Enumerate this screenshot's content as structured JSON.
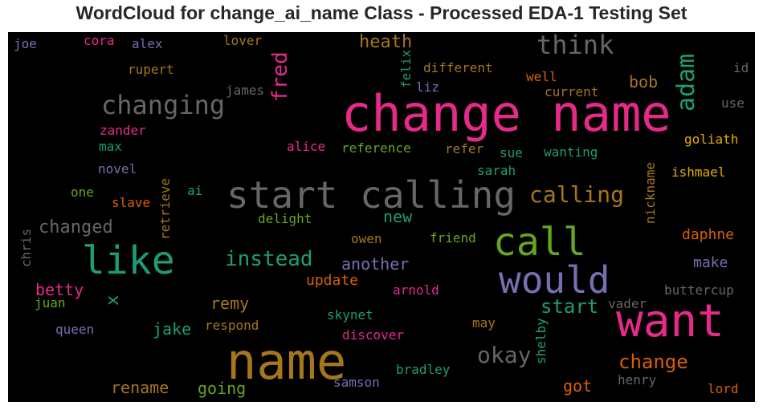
{
  "chart_data": {
    "type": "wordcloud",
    "title": "WordCloud for change_ai_name Class - Processed EDA-1 Testing Set",
    "words": [
      {
        "text": "change name",
        "color": "#e7298a"
      },
      {
        "text": "start calling",
        "color": "#666666"
      },
      {
        "text": "name",
        "color": "#a6761d"
      },
      {
        "text": "like",
        "color": "#1b9e77"
      },
      {
        "text": "call",
        "color": "#66a61e"
      },
      {
        "text": "would",
        "color": "#7570b3"
      },
      {
        "text": "want",
        "color": "#e7298a"
      },
      {
        "text": "think",
        "color": "#666666"
      },
      {
        "text": "changing",
        "color": "#666666"
      },
      {
        "text": "adam",
        "color": "#1b9e77"
      },
      {
        "text": "fred",
        "color": "#e7298a"
      },
      {
        "text": "calling",
        "color": "#a6761d"
      },
      {
        "text": "instead",
        "color": "#1b9e77"
      },
      {
        "text": "okay",
        "color": "#666666"
      },
      {
        "text": "change",
        "color": "#d95f02"
      },
      {
        "text": "start",
        "color": "#1b9e77"
      },
      {
        "text": "changed",
        "color": "#666666"
      },
      {
        "text": "heath",
        "color": "#a6761d"
      },
      {
        "text": "another",
        "color": "#7570b3"
      },
      {
        "text": "bob",
        "color": "#a6761d"
      },
      {
        "text": "new",
        "color": "#1b9e77"
      },
      {
        "text": "daphne",
        "color": "#d95f02"
      },
      {
        "text": "make",
        "color": "#7570b3"
      },
      {
        "text": "update",
        "color": "#d95f02"
      },
      {
        "text": "betty",
        "color": "#e7298a"
      },
      {
        "text": "remy",
        "color": "#a6761d"
      },
      {
        "text": "jake",
        "color": "#1b9e77"
      },
      {
        "text": "rename",
        "color": "#a6761d"
      },
      {
        "text": "going",
        "color": "#66a61e"
      },
      {
        "text": "got",
        "color": "#d95f02"
      },
      {
        "text": "x",
        "color": "#1b9e77"
      },
      {
        "text": "joe",
        "color": "#7570b3"
      },
      {
        "text": "cora",
        "color": "#e7298a"
      },
      {
        "text": "alex",
        "color": "#7570b3"
      },
      {
        "text": "lover",
        "color": "#a6761d"
      },
      {
        "text": "felix",
        "color": "#1b9e77"
      },
      {
        "text": "different",
        "color": "#a6761d"
      },
      {
        "text": "id",
        "color": "#666666"
      },
      {
        "text": "rupert",
        "color": "#a6761d"
      },
      {
        "text": "james",
        "color": "#666666"
      },
      {
        "text": "liz",
        "color": "#7570b3"
      },
      {
        "text": "well",
        "color": "#d95f02"
      },
      {
        "text": "current",
        "color": "#a6761d"
      },
      {
        "text": "use",
        "color": "#666666"
      },
      {
        "text": "zander",
        "color": "#e7298a"
      },
      {
        "text": "max",
        "color": "#1b9e77"
      },
      {
        "text": "alice",
        "color": "#e7298a"
      },
      {
        "text": "reference",
        "color": "#66a61e"
      },
      {
        "text": "refer",
        "color": "#a6761d"
      },
      {
        "text": "sue",
        "color": "#1b9e77"
      },
      {
        "text": "wanting",
        "color": "#1b9e77"
      },
      {
        "text": "goliath",
        "color": "#e6ab02"
      },
      {
        "text": "novel",
        "color": "#7570b3"
      },
      {
        "text": "retrieve",
        "color": "#a6761d"
      },
      {
        "text": "sarah",
        "color": "#1b9e77"
      },
      {
        "text": "nickname",
        "color": "#a6761d"
      },
      {
        "text": "ishmael",
        "color": "#e6ab02"
      },
      {
        "text": "one",
        "color": "#66a61e"
      },
      {
        "text": "ai",
        "color": "#1b9e77"
      },
      {
        "text": "slave",
        "color": "#d95f02"
      },
      {
        "text": "delight",
        "color": "#66a61e"
      },
      {
        "text": "chris",
        "color": "#666666"
      },
      {
        "text": "owen",
        "color": "#a6761d"
      },
      {
        "text": "friend",
        "color": "#66a61e"
      },
      {
        "text": "arnold",
        "color": "#e7298a"
      },
      {
        "text": "buttercup",
        "color": "#666666"
      },
      {
        "text": "juan",
        "color": "#66a61e"
      },
      {
        "text": "vader",
        "color": "#666666"
      },
      {
        "text": "skynet",
        "color": "#1b9e77"
      },
      {
        "text": "may",
        "color": "#a6761d"
      },
      {
        "text": "queen",
        "color": "#7570b3"
      },
      {
        "text": "respond",
        "color": "#a6761d"
      },
      {
        "text": "discover",
        "color": "#e7298a"
      },
      {
        "text": "shelby",
        "color": "#1b9e77"
      },
      {
        "text": "bradley",
        "color": "#1b9e77"
      },
      {
        "text": "henry",
        "color": "#666666"
      },
      {
        "text": "samson",
        "color": "#7570b3"
      },
      {
        "text": "lord",
        "color": "#d95f02"
      }
    ]
  }
}
